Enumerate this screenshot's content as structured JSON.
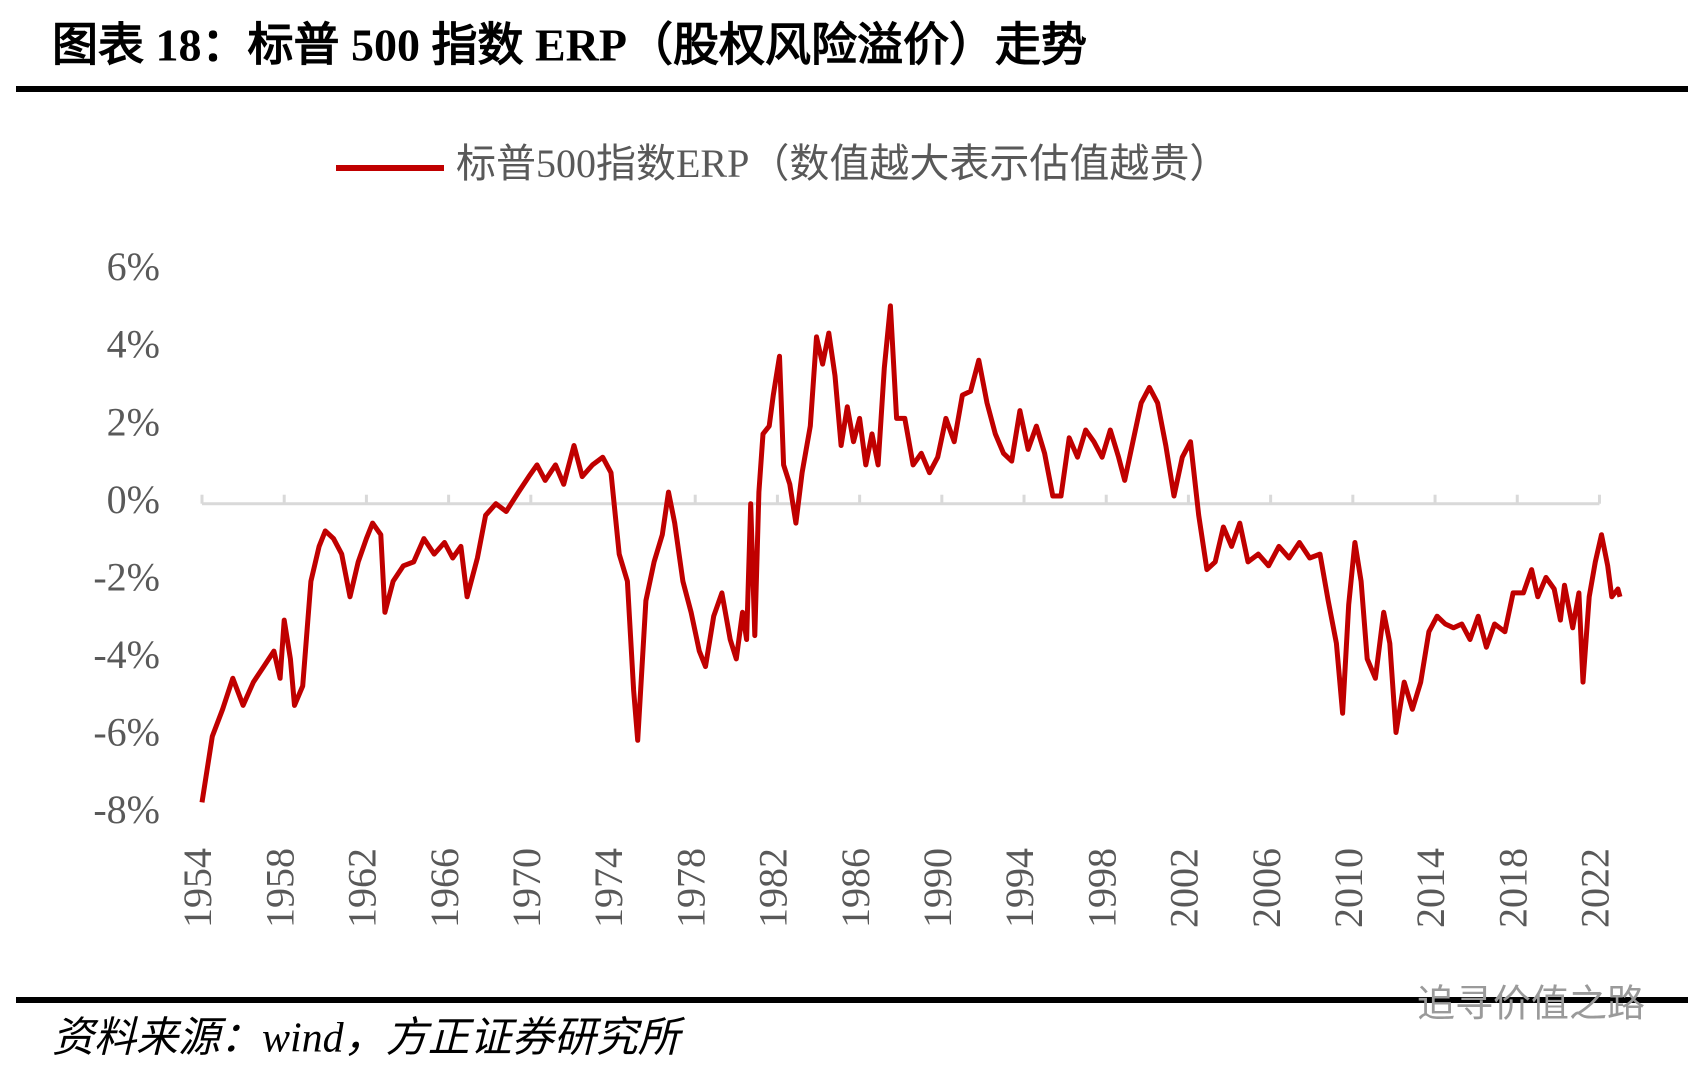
{
  "title": "图表 18：标普 500 指数 ERP（股权风险溢价）走势",
  "source": "资料来源：wind，方正证券研究所",
  "watermark": "追寻价值之路",
  "chart_data": {
    "type": "line",
    "x": [
      1954.0,
      1954.5,
      1955.0,
      1955.5,
      1956.0,
      1956.5,
      1957.0,
      1957.5,
      1957.8,
      1958.0,
      1958.3,
      1958.5,
      1958.9,
      1959.3,
      1959.7,
      1960.0,
      1960.4,
      1960.8,
      1961.2,
      1961.6,
      1962.0,
      1962.3,
      1962.7,
      1962.9,
      1963.3,
      1963.8,
      1964.3,
      1964.8,
      1965.3,
      1965.8,
      1966.2,
      1966.6,
      1966.9,
      1967.4,
      1967.8,
      1968.3,
      1968.8,
      1969.4,
      1969.9,
      1970.3,
      1970.7,
      1971.2,
      1971.6,
      1972.1,
      1972.5,
      1973.0,
      1973.5,
      1973.9,
      1974.3,
      1974.7,
      1975.0,
      1975.2,
      1975.6,
      1976.0,
      1976.4,
      1976.7,
      1977.0,
      1977.4,
      1977.8,
      1978.2,
      1978.5,
      1978.9,
      1979.3,
      1979.7,
      1980.0,
      1980.3,
      1980.5,
      1980.7,
      1980.9,
      1981.1,
      1981.3,
      1981.6,
      1981.8,
      1982.1,
      1982.3,
      1982.6,
      1982.9,
      1983.2,
      1983.6,
      1983.9,
      1984.2,
      1984.5,
      1984.8,
      1985.1,
      1985.4,
      1985.7,
      1986.0,
      1986.3,
      1986.6,
      1986.9,
      1987.2,
      1987.5,
      1987.8,
      1988.2,
      1988.6,
      1989.0,
      1989.4,
      1989.8,
      1990.2,
      1990.6,
      1991.0,
      1991.4,
      1991.8,
      1992.2,
      1992.6,
      1993.0,
      1993.4,
      1993.8,
      1994.2,
      1994.6,
      1995.0,
      1995.4,
      1995.8,
      1996.2,
      1996.6,
      1997.0,
      1997.4,
      1997.8,
      1998.2,
      1998.6,
      1998.9,
      1999.3,
      1999.7,
      2000.1,
      2000.5,
      2000.9,
      2001.3,
      2001.7,
      2002.1,
      2002.5,
      2002.9,
      2003.3,
      2003.7,
      2004.1,
      2004.5,
      2004.9,
      2005.4,
      2005.9,
      2006.4,
      2006.9,
      2007.4,
      2007.9,
      2008.4,
      2008.8,
      2009.2,
      2009.5,
      2009.8,
      2010.1,
      2010.4,
      2010.7,
      2011.1,
      2011.5,
      2011.8,
      2012.1,
      2012.5,
      2012.9,
      2013.3,
      2013.7,
      2014.1,
      2014.5,
      2014.9,
      2015.3,
      2015.7,
      2016.1,
      2016.5,
      2016.9,
      2017.4,
      2017.8,
      2018.3,
      2018.7,
      2019.0,
      2019.4,
      2019.8,
      2020.1,
      2020.3,
      2020.7,
      2021.0,
      2021.2,
      2021.5,
      2021.8,
      2022.1,
      2022.4,
      2022.6,
      2022.9,
      2023.0
    ],
    "series": [
      {
        "name": "标普500指数ERP（数值越大表示估值越贵）",
        "color": "#c00000",
        "values": [
          -7.7,
          -6.0,
          -5.3,
          -4.5,
          -5.2,
          -4.6,
          -4.2,
          -3.8,
          -4.5,
          -3.0,
          -4.0,
          -5.2,
          -4.7,
          -2.0,
          -1.1,
          -0.7,
          -0.9,
          -1.3,
          -2.4,
          -1.5,
          -0.9,
          -0.5,
          -0.8,
          -2.8,
          -2.0,
          -1.6,
          -1.5,
          -0.9,
          -1.3,
          -1.0,
          -1.4,
          -1.1,
          -2.4,
          -1.4,
          -0.3,
          0.0,
          -0.2,
          0.3,
          0.7,
          1.0,
          0.6,
          1.0,
          0.5,
          1.5,
          0.7,
          1.0,
          1.2,
          0.8,
          -1.3,
          -2.0,
          -4.8,
          -6.1,
          -2.5,
          -1.5,
          -0.8,
          0.3,
          -0.5,
          -2.0,
          -2.8,
          -3.8,
          -4.2,
          -2.9,
          -2.3,
          -3.5,
          -4.0,
          -2.8,
          -3.5,
          0.0,
          -3.4,
          0.3,
          1.8,
          2.0,
          2.8,
          3.8,
          1.0,
          0.5,
          -0.5,
          0.8,
          2.0,
          4.3,
          3.6,
          4.4,
          3.3,
          1.5,
          2.5,
          1.6,
          2.2,
          1.0,
          1.8,
          1.0,
          3.5,
          5.1,
          2.2,
          2.2,
          1.0,
          1.3,
          0.8,
          1.2,
          2.2,
          1.6,
          2.8,
          2.9,
          3.7,
          2.6,
          1.8,
          1.3,
          1.1,
          2.4,
          1.4,
          2.0,
          1.3,
          0.2,
          0.2,
          1.7,
          1.2,
          1.9,
          1.6,
          1.2,
          1.9,
          1.2,
          0.6,
          1.6,
          2.6,
          3.0,
          2.6,
          1.5,
          0.2,
          1.2,
          1.6,
          -0.3,
          -1.7,
          -1.5,
          -0.6,
          -1.1,
          -0.5,
          -1.5,
          -1.3,
          -1.6,
          -1.1,
          -1.4,
          -1.0,
          -1.4,
          -1.3,
          -2.5,
          -3.6,
          -5.4,
          -2.6,
          -1.0,
          -2.0,
          -4.0,
          -4.5,
          -2.8,
          -3.6,
          -5.9,
          -4.6,
          -5.3,
          -4.6,
          -3.3,
          -2.9,
          -3.1,
          -3.2,
          -3.1,
          -3.5,
          -2.9,
          -3.7,
          -3.1,
          -3.3,
          -2.3,
          -2.3,
          -1.7,
          -2.4,
          -1.9,
          -2.2,
          -3.0,
          -2.1,
          -3.2,
          -2.3,
          -4.6,
          -2.4,
          -1.5,
          -0.8,
          -1.6,
          -2.4,
          -2.2,
          -2.4
        ]
      }
    ],
    "xlim": [
      1954,
      2023
    ],
    "xticks": [
      1954,
      1958,
      1962,
      1966,
      1970,
      1974,
      1978,
      1982,
      1986,
      1990,
      1994,
      1998,
      2002,
      2006,
      2010,
      2014,
      2018,
      2022
    ],
    "ylim": [
      -8,
      6
    ],
    "yticks": [
      {
        "value": -8,
        "label": "-8%"
      },
      {
        "value": -6,
        "label": "-6%"
      },
      {
        "value": -4,
        "label": "-4%"
      },
      {
        "value": -2,
        "label": "-2%"
      },
      {
        "value": 0,
        "label": "0%"
      },
      {
        "value": 2,
        "label": "2%"
      },
      {
        "value": 4,
        "label": "4%"
      },
      {
        "value": 6,
        "label": "6%"
      }
    ],
    "legend": "top"
  }
}
